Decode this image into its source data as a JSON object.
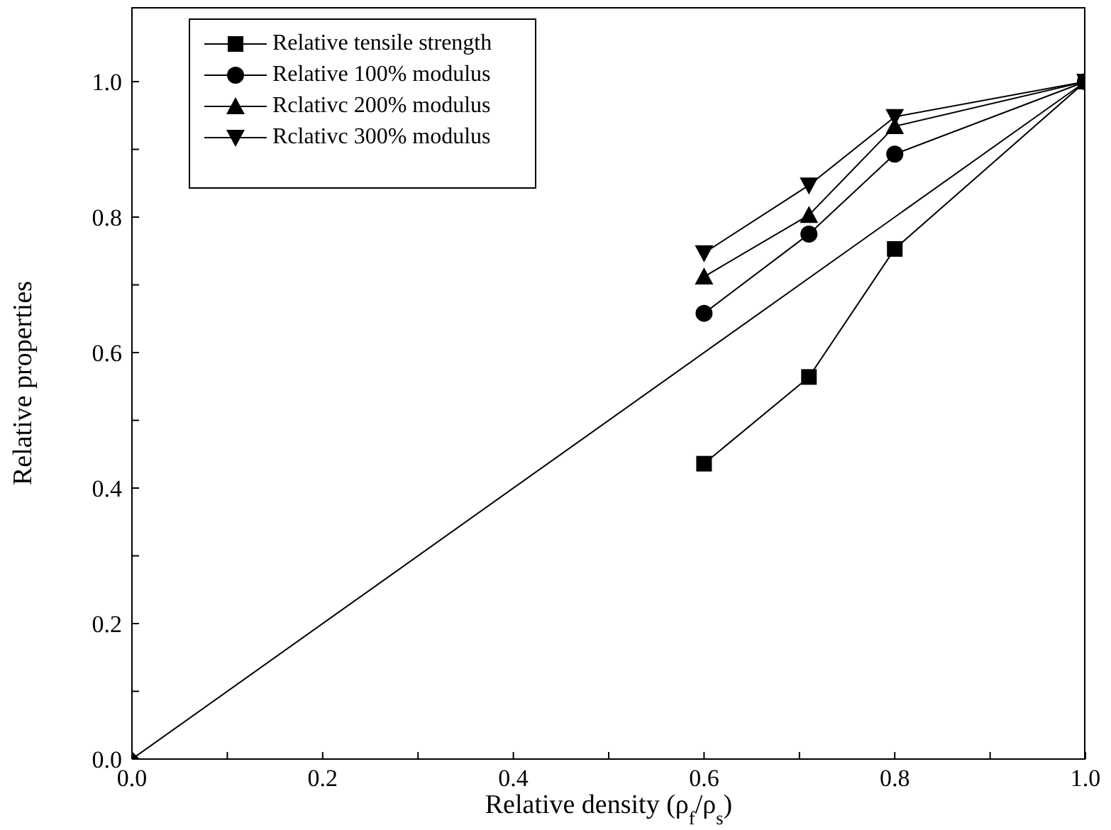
{
  "chart_data": {
    "type": "line",
    "xlabel": "Relative density (ρ$_{f}$/ρ$_{s}$)",
    "ylabel": "Relative properties",
    "x": [
      0.6,
      0.71,
      0.8,
      1.0
    ],
    "series": [
      {
        "name": "Relative tensile strength",
        "color": "#000000",
        "marker": "square",
        "values": [
          0.436,
          0.564,
          0.753,
          1.0
        ]
      },
      {
        "name": "Relative 100% modulus",
        "color": "#000000",
        "marker": "circle",
        "values": [
          0.658,
          0.775,
          0.893,
          1.0
        ]
      },
      {
        "name": "Rclativc 200% modulus",
        "color": "#000000",
        "marker": "triangle",
        "values": [
          0.712,
          0.803,
          0.934,
          1.0
        ]
      },
      {
        "name": "Rclativc 300% modulus",
        "color": "#000000",
        "marker": "triangle-down",
        "values": [
          0.747,
          0.847,
          0.948,
          1.0
        ]
      },
      {
        "color": "#000000",
        "marker": "diamond",
        "x": [
          0,
          1.0
        ],
        "values": [
          0,
          1.0
        ]
      }
    ],
    "xlim": [
      0,
      1.0
    ],
    "ylim": [
      0,
      1.11
    ],
    "xticks": [
      {
        "value": 0,
        "label": "0.0"
      },
      {
        "value": 0.1,
        "label": null
      },
      {
        "value": 0.2,
        "label": "0.2"
      },
      {
        "value": 0.3,
        "label": null
      },
      {
        "value": 0.4,
        "label": "0.4"
      },
      {
        "value": 0.5,
        "label": null
      },
      {
        "value": 0.6,
        "label": "0.6"
      },
      {
        "value": 0.7,
        "label": null
      },
      {
        "value": 0.8,
        "label": "0.8"
      },
      {
        "value": 0.9,
        "label": null
      },
      {
        "value": 1.0,
        "label": "1.0"
      }
    ],
    "yticks": [
      {
        "value": 0,
        "label": "0.0"
      },
      {
        "value": 0.1,
        "label": null
      },
      {
        "value": 0.2,
        "label": "0.2"
      },
      {
        "value": 0.3,
        "label": null
      },
      {
        "value": 0.4,
        "label": "0.4"
      },
      {
        "value": 0.5,
        "label": null
      },
      {
        "value": 0.6,
        "label": "0.6"
      },
      {
        "value": 0.7,
        "label": null
      },
      {
        "value": 0.8,
        "label": "0.8"
      },
      {
        "value": 0.9,
        "label": null
      },
      {
        "value": 1.0,
        "label": "1.0"
      }
    ],
    "grid": false,
    "legend": "top left",
    "line_style": "solid"
  }
}
